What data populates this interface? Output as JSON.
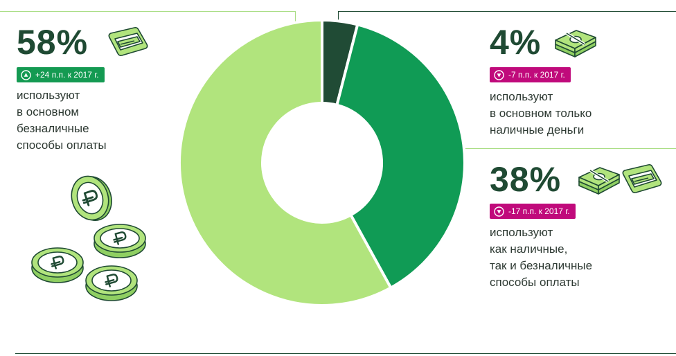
{
  "colors": {
    "dark": "#204b35",
    "medium": "#109b55",
    "light": "#b1e47d",
    "up_badge": "#149a52",
    "down_badge": "#c00a7b"
  },
  "chart_data": {
    "type": "pie",
    "donut": true,
    "slices": [
      {
        "value": 4,
        "color": "#204b35"
      },
      {
        "value": 38,
        "color": "#109b55"
      },
      {
        "value": 58,
        "color": "#b1e47d"
      }
    ]
  },
  "left": {
    "percent": "58%",
    "badge": "+24 п.п. к 2017 г.",
    "desc": [
      "используют",
      "в основном",
      "безналичные",
      "способы оплаты"
    ],
    "icon": "card-terminal-icon",
    "coins_icon": "ruble-coins-icon"
  },
  "right_top": {
    "percent": "4%",
    "badge": "-7 п.п. к 2017 г.",
    "desc": [
      "используют",
      "в основном только",
      "наличные деньги"
    ],
    "icon": "cash-stack-icon"
  },
  "right_bottom": {
    "percent": "38%",
    "badge": "-17 п.п. к 2017 г.",
    "desc": [
      "используют",
      "как наличные,",
      "так и безналичные",
      "способы оплаты"
    ],
    "icons": [
      "cash-stack-icon",
      "card-terminal-icon"
    ]
  }
}
